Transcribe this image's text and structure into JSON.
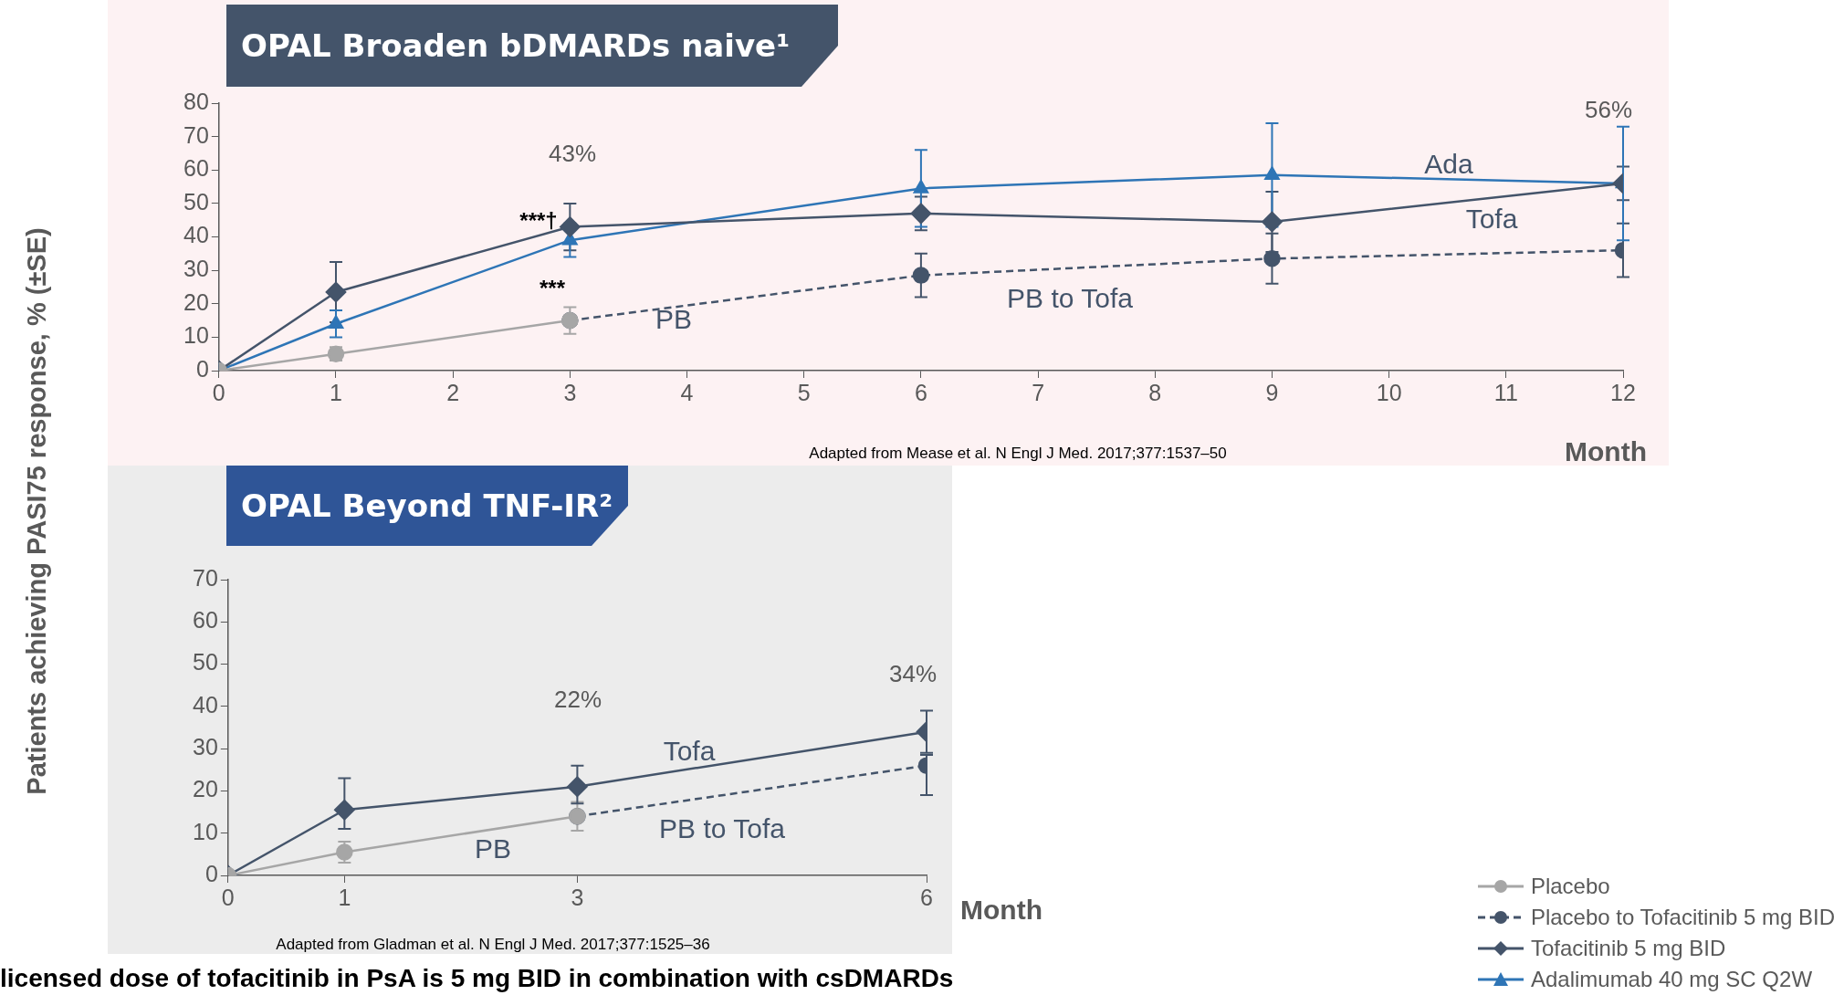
{
  "chart_data": [
    {
      "type": "line",
      "title": "OPAL Broaden bDMARDs naive¹",
      "xlabel": "Month",
      "ylabel": "Patients achieving PASI75 response, % (±SE)",
      "xlim": [
        0,
        12
      ],
      "xticks": [
        0,
        1,
        2,
        3,
        4,
        5,
        6,
        7,
        8,
        9,
        10,
        11,
        12
      ],
      "ylim": [
        0,
        80
      ],
      "yticks": [
        0,
        10,
        20,
        30,
        40,
        50,
        60,
        70,
        80
      ],
      "legend": "bottom right",
      "series": [
        {
          "name": "Placebo",
          "color": "#a6a6a6",
          "x": [
            0,
            1,
            3
          ],
          "values": [
            0,
            5,
            15
          ],
          "errors": [
            null,
            2,
            4
          ],
          "marker": "circle"
        },
        {
          "name": "Placebo to Tofacitinib 5 mg BID",
          "color": "#44546a",
          "x": [
            3,
            6,
            9,
            12
          ],
          "values": [
            15,
            28.5,
            33.5,
            36
          ],
          "errors": [
            null,
            6.5,
            7.5,
            8
          ],
          "marker": "circle",
          "line_style": "dashed"
        },
        {
          "name": "Tofacitinib 5 mg BID",
          "color": "#44546a",
          "x": [
            0,
            1,
            3,
            6,
            9,
            12
          ],
          "values": [
            0,
            23.5,
            43,
            47,
            44.5,
            56
          ],
          "errors": [
            null,
            9,
            7,
            5,
            9,
            5
          ],
          "marker": "diamond"
        },
        {
          "name": "Adalimumab 40 mg SC Q2W",
          "color": "#2e75b6",
          "x": [
            0,
            1,
            3,
            6,
            9,
            12
          ],
          "values": [
            0,
            14,
            39,
            54.5,
            58.5,
            56
          ],
          "errors": [
            null,
            4,
            5,
            11.5,
            15.5,
            17
          ],
          "marker": "triangle"
        }
      ],
      "annotations": [
        "43%",
        "56%",
        "***†",
        "***",
        "PB",
        "PB to Tofa",
        "Ada",
        "Tofa",
        "Adapted from Mease et al. N Engl J Med. 2017;377:1537–50"
      ]
    },
    {
      "type": "line",
      "title": "OPAL Beyond TNF-IR²",
      "xlabel": "Month",
      "xlim": [
        0,
        6
      ],
      "xticks": [
        0,
        1,
        3,
        6
      ],
      "ylim": [
        0,
        70
      ],
      "yticks": [
        0,
        10,
        20,
        30,
        40,
        50,
        60,
        70
      ],
      "series": [
        {
          "color": "#a6a6a6",
          "x": [
            0,
            1,
            3
          ],
          "values": [
            0,
            5.5,
            14
          ],
          "errors": [
            null,
            2.5,
            3.4
          ],
          "marker": "circle"
        },
        {
          "color": "#44546a",
          "x": [
            3,
            6
          ],
          "values": [
            14,
            26
          ],
          "errors": [
            null,
            [
              19,
              28.5
            ]
          ],
          "marker": "circle",
          "line_style": "dashed"
        },
        {
          "color": "#44546a",
          "x": [
            0,
            1,
            3,
            6
          ],
          "values": [
            0,
            15.5,
            21,
            34
          ],
          "errors": [
            null,
            [
              11,
              23
            ],
            [
              17,
              26
            ],
            [
              29,
              39
            ]
          ],
          "marker": "diamond"
        }
      ],
      "annotations": [
        "22%",
        "34%",
        "Tofa",
        "PB to Tofa",
        "PB",
        "Adapted from Gladman et al. N Engl J Med. 2017;377:1525–36",
        "licensed dose of tofacitinib in PsA is 5 mg BID in combination with csDMARDs"
      ]
    }
  ]
}
